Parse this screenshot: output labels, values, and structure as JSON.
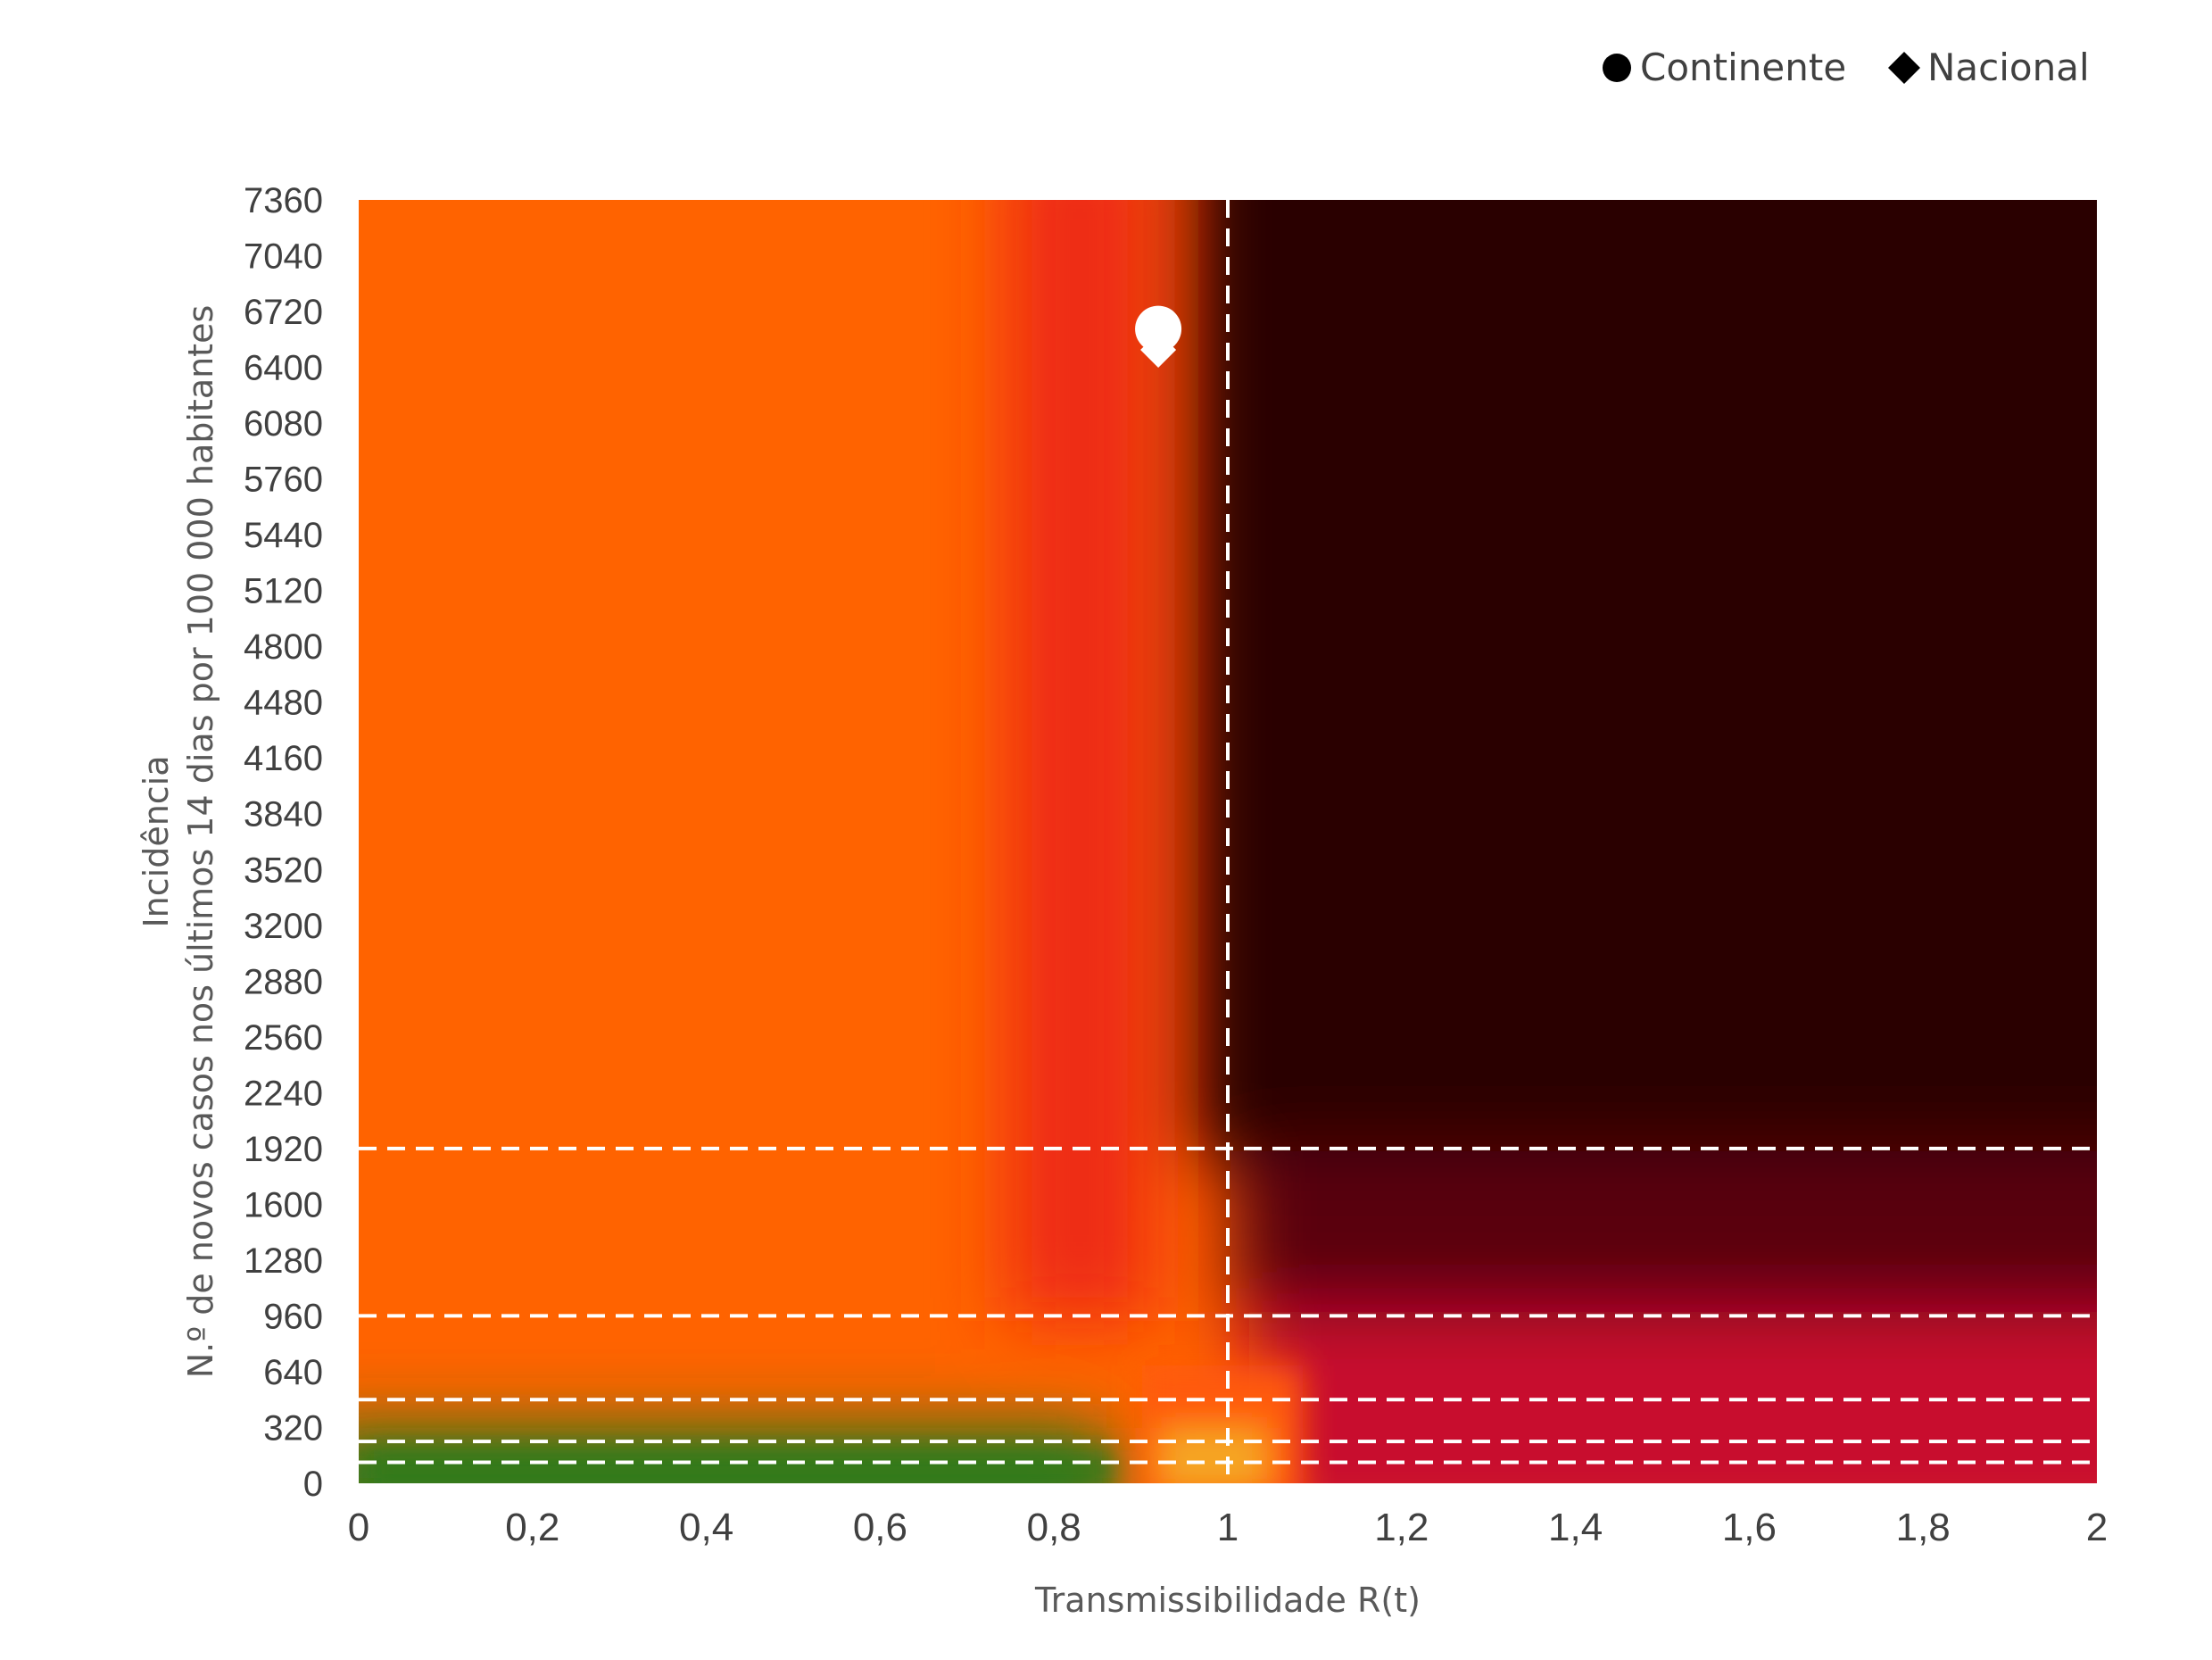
{
  "chart_data": {
    "type": "heatmap",
    "xlabel": "Transmissibilidade R(t)",
    "ylabel_line1": "Incidência",
    "ylabel_line2": "N.º de novos casos nos últimos 14 dias por 100 000 habitantes",
    "xlim": [
      0,
      2
    ],
    "ylim": [
      0,
      7360
    ],
    "x_ticks": [
      "0",
      "0,2",
      "0,4",
      "0,6",
      "0,8",
      "1",
      "1,2",
      "1,4",
      "1,6",
      "1,8",
      "2"
    ],
    "y_ticks": [
      "0",
      "320",
      "640",
      "960",
      "1280",
      "1600",
      "1920",
      "2240",
      "2560",
      "2880",
      "3200",
      "3520",
      "3840",
      "4160",
      "4480",
      "4800",
      "5120",
      "5440",
      "5760",
      "6080",
      "6400",
      "6720",
      "7040",
      "7360"
    ],
    "reference_lines": {
      "vertical_x": [
        1
      ],
      "horizontal_y": [
        120,
        240,
        480,
        960,
        1920
      ]
    },
    "legend": {
      "placement": "top-right",
      "entries": [
        {
          "name": "Continente",
          "marker": "circle"
        },
        {
          "name": "Nacional",
          "marker": "diamond"
        }
      ]
    },
    "points": [
      {
        "series": "Continente",
        "x": 0.92,
        "y": 6620
      },
      {
        "series": "Nacional",
        "x": 0.92,
        "y": 6500
      }
    ],
    "colors": {
      "green": "#2f7a1a",
      "yellow": "#f5a623",
      "orange": "#ff6300",
      "red": "#e0261b",
      "crimson": "#c8102e",
      "dark_red": "#7a0012",
      "maroon": "#2a0002",
      "marker": "#ffffff",
      "reference_line": "#ffffff"
    }
  }
}
